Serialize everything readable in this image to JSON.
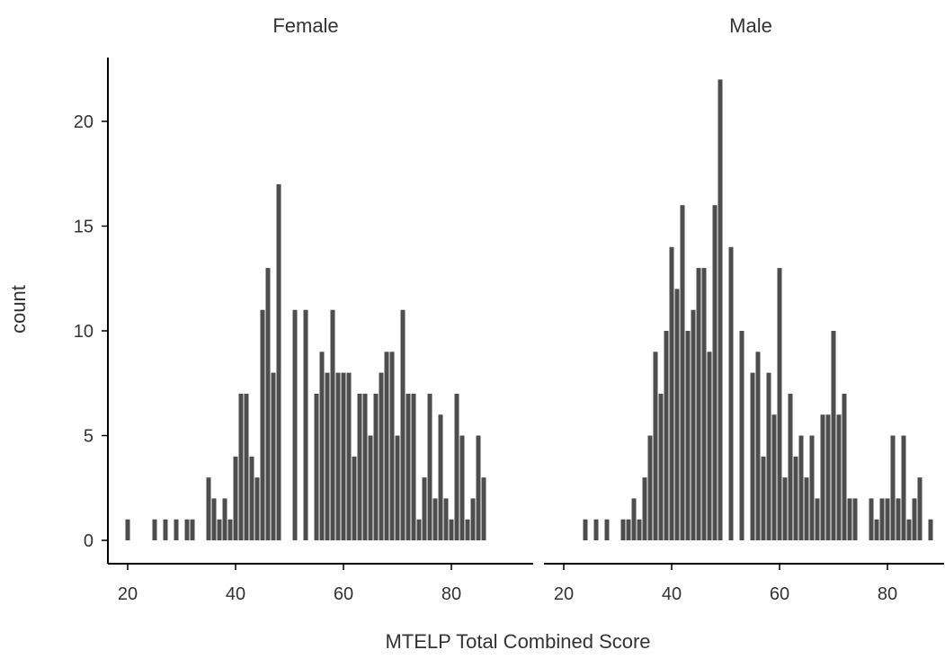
{
  "chart_data": {
    "type": "bar",
    "ylabel": "count",
    "xlabel": "MTELP Total Combined Score",
    "ylim": [
      0,
      22
    ],
    "xlim": [
      18,
      89
    ],
    "x_ticks": [
      20,
      40,
      60,
      80
    ],
    "y_ticks": [
      0,
      5,
      10,
      15,
      20
    ],
    "grid": false,
    "colors": {
      "bar": "#4d4d4d",
      "axis": "#000000",
      "text": "#333333"
    },
    "facets": [
      {
        "label": "Female",
        "bins": [
          [
            20,
            1
          ],
          [
            25,
            1
          ],
          [
            27,
            1
          ],
          [
            29,
            1
          ],
          [
            31,
            1
          ],
          [
            32,
            1
          ],
          [
            35,
            3
          ],
          [
            36,
            2
          ],
          [
            37,
            1
          ],
          [
            38,
            2
          ],
          [
            39,
            1
          ],
          [
            40,
            4
          ],
          [
            41,
            7
          ],
          [
            42,
            7
          ],
          [
            43,
            4
          ],
          [
            44,
            3
          ],
          [
            45,
            11
          ],
          [
            46,
            13
          ],
          [
            47,
            8
          ],
          [
            48,
            17
          ],
          [
            51,
            11
          ],
          [
            53,
            11
          ],
          [
            55,
            7
          ],
          [
            56,
            9
          ],
          [
            57,
            8
          ],
          [
            58,
            11
          ],
          [
            59,
            8
          ],
          [
            60,
            8
          ],
          [
            61,
            8
          ],
          [
            62,
            4
          ],
          [
            63,
            7
          ],
          [
            64,
            7
          ],
          [
            65,
            5
          ],
          [
            66,
            7
          ],
          [
            67,
            8
          ],
          [
            68,
            9
          ],
          [
            69,
            9
          ],
          [
            70,
            5
          ],
          [
            71,
            11
          ],
          [
            72,
            7
          ],
          [
            73,
            7
          ],
          [
            74,
            1
          ],
          [
            75,
            3
          ],
          [
            76,
            7
          ],
          [
            77,
            2
          ],
          [
            78,
            6
          ],
          [
            79,
            2
          ],
          [
            80,
            1
          ],
          [
            81,
            7
          ],
          [
            82,
            5
          ],
          [
            83,
            1
          ],
          [
            84,
            2
          ],
          [
            85,
            5
          ],
          [
            86,
            3
          ]
        ]
      },
      {
        "label": "Male",
        "bins": [
          [
            24,
            1
          ],
          [
            26,
            1
          ],
          [
            28,
            1
          ],
          [
            31,
            1
          ],
          [
            32,
            1
          ],
          [
            33,
            2
          ],
          [
            34,
            1
          ],
          [
            35,
            3
          ],
          [
            36,
            5
          ],
          [
            37,
            9
          ],
          [
            38,
            7
          ],
          [
            39,
            10
          ],
          [
            40,
            14
          ],
          [
            41,
            12
          ],
          [
            42,
            16
          ],
          [
            43,
            10
          ],
          [
            44,
            11
          ],
          [
            45,
            13
          ],
          [
            46,
            13
          ],
          [
            47,
            9
          ],
          [
            48,
            16
          ],
          [
            49,
            22
          ],
          [
            51,
            14
          ],
          [
            53,
            10
          ],
          [
            55,
            8
          ],
          [
            56,
            9
          ],
          [
            57,
            4
          ],
          [
            58,
            8
          ],
          [
            59,
            6
          ],
          [
            60,
            13
          ],
          [
            61,
            3
          ],
          [
            62,
            7
          ],
          [
            63,
            4
          ],
          [
            64,
            5
          ],
          [
            65,
            3
          ],
          [
            66,
            5
          ],
          [
            67,
            2
          ],
          [
            68,
            6
          ],
          [
            69,
            6
          ],
          [
            70,
            10
          ],
          [
            71,
            6
          ],
          [
            72,
            7
          ],
          [
            73,
            2
          ],
          [
            74,
            2
          ],
          [
            77,
            2
          ],
          [
            78,
            1
          ],
          [
            79,
            2
          ],
          [
            80,
            2
          ],
          [
            81,
            5
          ],
          [
            82,
            2
          ],
          [
            83,
            5
          ],
          [
            84,
            1
          ],
          [
            85,
            2
          ],
          [
            86,
            3
          ],
          [
            88,
            1
          ]
        ]
      }
    ]
  }
}
